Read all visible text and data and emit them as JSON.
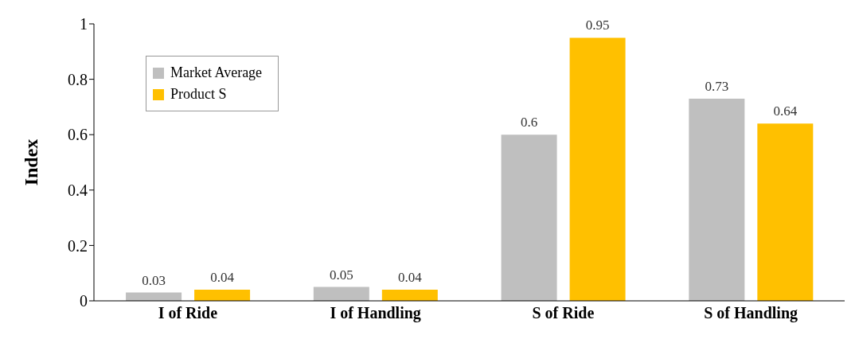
{
  "chart_data": {
    "type": "bar",
    "ylabel": "Index",
    "categories": [
      "I of Ride",
      "I of Handling",
      "S of Ride",
      "S of Handling"
    ],
    "series": [
      {
        "name": "Market Average",
        "color": "#bfbfbf",
        "values": [
          0.03,
          0.05,
          0.6,
          0.73
        ]
      },
      {
        "name": "Product S",
        "color": "#ffc000",
        "values": [
          0.04,
          0.04,
          0.95,
          0.64
        ]
      }
    ],
    "ylim": [
      0,
      1
    ],
    "yticks": [
      0,
      0.2,
      0.4,
      0.6,
      0.8,
      1
    ],
    "grid": false,
    "legend": "top left",
    "data_labels": true
  }
}
